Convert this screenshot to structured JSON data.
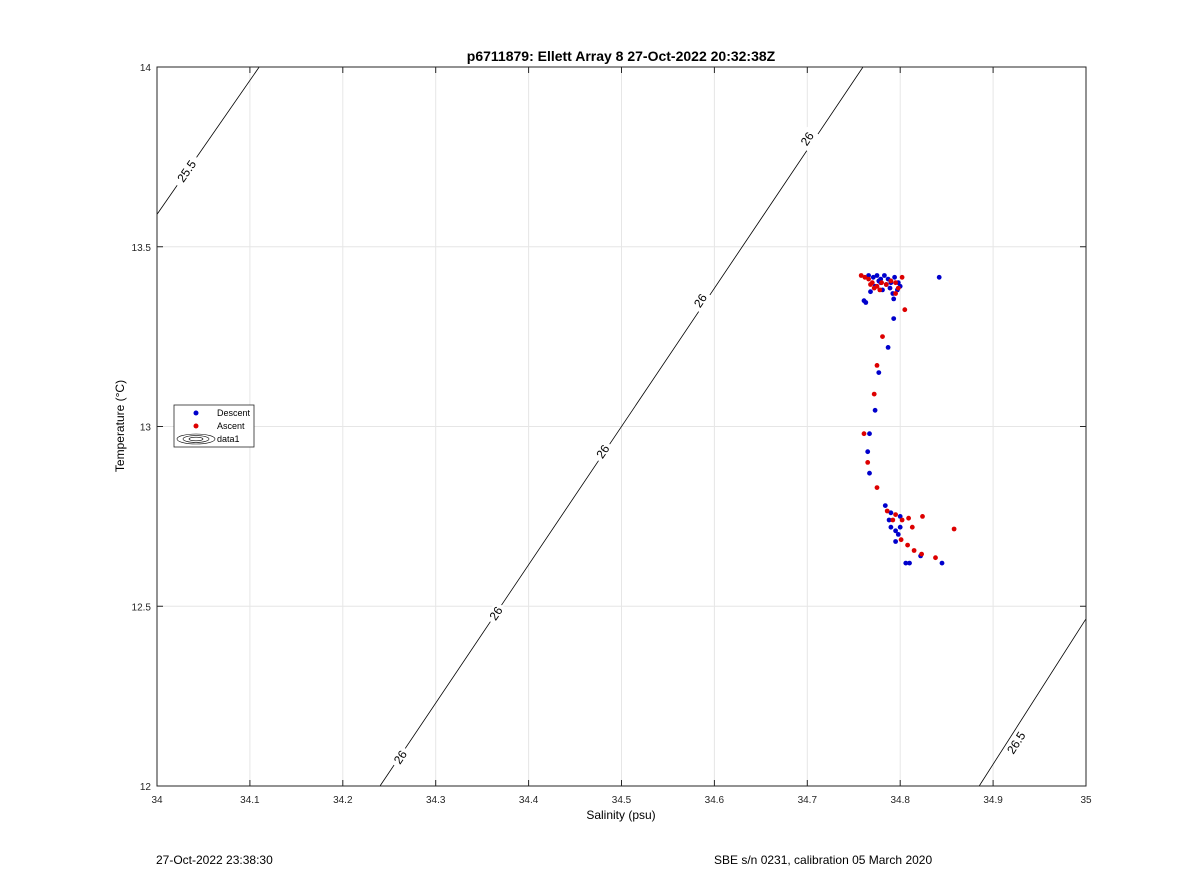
{
  "chart_data": {
    "type": "scatter",
    "title": "p6711879: Ellett Array 8 27-Oct-2022 20:32:38Z",
    "xlabel": "Salinity (psu)",
    "ylabel": "Temperature (°C)",
    "xlim": [
      34,
      35
    ],
    "ylim": [
      12,
      14
    ],
    "xticks": [
      "34",
      "34.1",
      "34.2",
      "34.3",
      "34.4",
      "34.5",
      "34.6",
      "34.7",
      "34.8",
      "34.9",
      "35"
    ],
    "yticks": [
      "12",
      "12.5",
      "13",
      "13.5",
      "14"
    ],
    "grid": true,
    "legend": {
      "placement": "left",
      "entries": [
        "Descent",
        "Ascent",
        "data1"
      ]
    },
    "series": [
      {
        "name": "Descent",
        "color": "#0000cc",
        "points": [
          [
            34.842,
            13.415
          ],
          [
            34.766,
            13.42
          ],
          [
            34.771,
            13.415
          ],
          [
            34.775,
            13.42
          ],
          [
            34.779,
            13.41
          ],
          [
            34.783,
            13.42
          ],
          [
            34.787,
            13.41
          ],
          [
            34.79,
            13.4
          ],
          [
            34.794,
            13.415
          ],
          [
            34.798,
            13.4
          ],
          [
            34.777,
            13.405
          ],
          [
            34.785,
            13.395
          ],
          [
            34.781,
            13.38
          ],
          [
            34.789,
            13.385
          ],
          [
            34.773,
            13.39
          ],
          [
            34.768,
            13.375
          ],
          [
            34.792,
            13.37
          ],
          [
            34.797,
            13.38
          ],
          [
            34.8,
            13.39
          ],
          [
            34.763,
            13.345
          ],
          [
            34.761,
            13.35
          ],
          [
            34.793,
            13.355
          ],
          [
            34.779,
            13.4
          ],
          [
            34.793,
            13.3
          ],
          [
            34.787,
            13.22
          ],
          [
            34.777,
            13.15
          ],
          [
            34.773,
            13.045
          ],
          [
            34.767,
            12.98
          ],
          [
            34.765,
            12.93
          ],
          [
            34.767,
            12.87
          ],
          [
            34.784,
            12.78
          ],
          [
            34.79,
            12.76
          ],
          [
            34.788,
            12.74
          ],
          [
            34.79,
            12.72
          ],
          [
            34.795,
            12.71
          ],
          [
            34.798,
            12.7
          ],
          [
            34.795,
            12.68
          ],
          [
            34.8,
            12.72
          ],
          [
            34.806,
            12.62
          ],
          [
            34.81,
            12.62
          ],
          [
            34.822,
            12.64
          ],
          [
            34.845,
            12.62
          ],
          [
            34.8,
            12.75
          ]
        ]
      },
      {
        "name": "Ascent",
        "color": "#dd0000",
        "points": [
          [
            34.758,
            13.42
          ],
          [
            34.762,
            13.415
          ],
          [
            34.766,
            13.41
          ],
          [
            34.77,
            13.4
          ],
          [
            34.775,
            13.39
          ],
          [
            34.778,
            13.38
          ],
          [
            34.78,
            13.4
          ],
          [
            34.772,
            13.385
          ],
          [
            34.768,
            13.395
          ],
          [
            34.785,
            13.395
          ],
          [
            34.79,
            13.405
          ],
          [
            34.795,
            13.4
          ],
          [
            34.798,
            13.385
          ],
          [
            34.802,
            13.415
          ],
          [
            34.795,
            13.37
          ],
          [
            34.805,
            13.325
          ],
          [
            34.781,
            13.25
          ],
          [
            34.775,
            13.17
          ],
          [
            34.772,
            13.09
          ],
          [
            34.761,
            12.98
          ],
          [
            34.765,
            12.9
          ],
          [
            34.775,
            12.83
          ],
          [
            34.786,
            12.765
          ],
          [
            34.795,
            12.755
          ],
          [
            34.802,
            12.74
          ],
          [
            34.809,
            12.745
          ],
          [
            34.813,
            12.72
          ],
          [
            34.824,
            12.75
          ],
          [
            34.858,
            12.715
          ],
          [
            34.801,
            12.685
          ],
          [
            34.808,
            12.67
          ],
          [
            34.815,
            12.655
          ],
          [
            34.823,
            12.645
          ],
          [
            34.838,
            12.635
          ],
          [
            34.792,
            12.74
          ]
        ]
      }
    ],
    "contours": [
      {
        "label": "25.5",
        "points": [
          [
            34.0,
            13.59
          ],
          [
            34.11,
            14.0
          ]
        ],
        "label_positions": [
          [
            34.032,
            13.71
          ]
        ]
      },
      {
        "label": "26",
        "points": [
          [
            34.24,
            12.0
          ],
          [
            34.76,
            14.0
          ]
        ],
        "label_positions": [
          [
            34.262,
            12.08
          ],
          [
            34.365,
            12.48
          ],
          [
            34.48,
            12.93
          ],
          [
            34.585,
            13.35
          ],
          [
            34.7,
            13.8
          ]
        ]
      },
      {
        "label": "26.5",
        "points": [
          [
            34.885,
            12.0
          ],
          [
            35.0,
            12.465
          ]
        ],
        "label_positions": [
          [
            34.925,
            12.12
          ]
        ]
      }
    ]
  },
  "footer": {
    "left": "27-Oct-2022 23:38:30",
    "right": "SBE s/n 0231, calibration 05 March 2020"
  }
}
